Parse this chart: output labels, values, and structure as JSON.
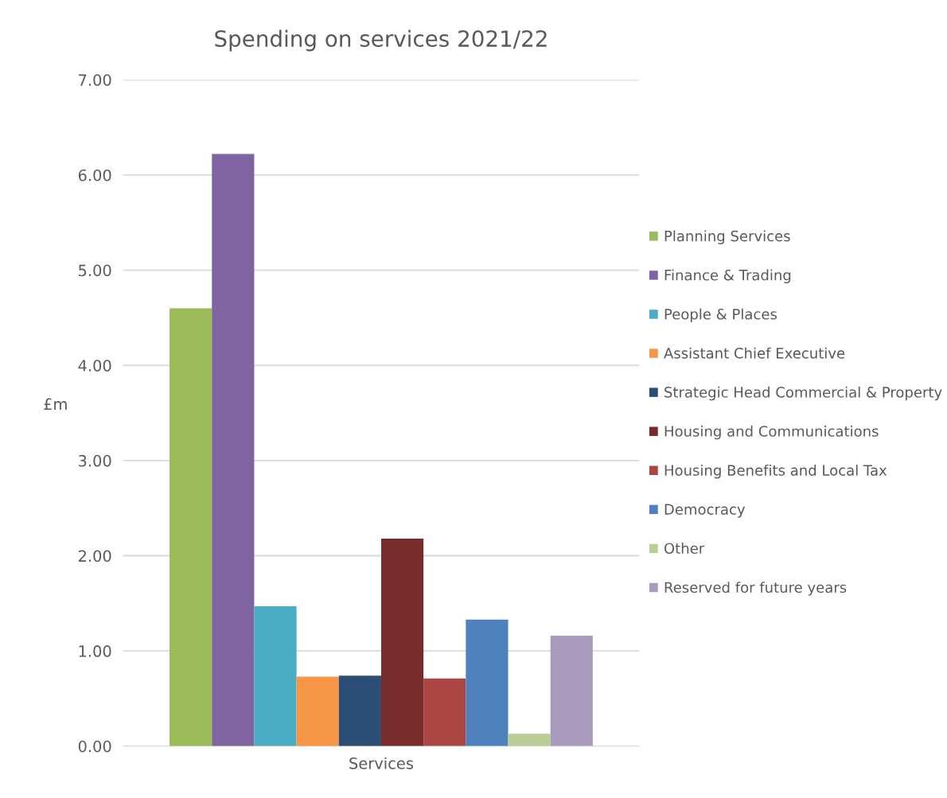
{
  "chart_data": {
    "type": "bar",
    "title": "Spending on services 2021/22",
    "ylabel": "£m",
    "categories": [
      "Services"
    ],
    "series": [
      {
        "name": "Planning Services",
        "color": "#9bbb59",
        "values": [
          4.6
        ]
      },
      {
        "name": "Finance & Trading",
        "color": "#8064a2",
        "values": [
          6.22
        ]
      },
      {
        "name": "People & Places",
        "color": "#4bacc6",
        "values": [
          1.47
        ]
      },
      {
        "name": "Assistant Chief Executive",
        "color": "#f79646",
        "values": [
          0.73
        ]
      },
      {
        "name": "Strategic Head Commercial & Property",
        "color": "#2c4d75",
        "values": [
          0.74
        ]
      },
      {
        "name": "Housing and Communications",
        "color": "#772c2a",
        "values": [
          2.18
        ]
      },
      {
        "name": "Housing Benefits and Local Tax",
        "color": "#aa4644",
        "values": [
          0.71
        ]
      },
      {
        "name": "Democracy",
        "color": "#4f81bd",
        "values": [
          1.33
        ]
      },
      {
        "name": "Other",
        "color": "#b9cd96",
        "values": [
          0.13
        ]
      },
      {
        "name": "Reserved for future years",
        "color": "#a99bbd",
        "values": [
          1.16
        ]
      }
    ],
    "ylim": [
      0,
      7
    ],
    "yticks": [
      {
        "value": 0,
        "label": "0.00"
      },
      {
        "value": 1,
        "label": "1.00"
      },
      {
        "value": 2,
        "label": "2.00"
      },
      {
        "value": 3,
        "label": "3.00"
      },
      {
        "value": 4,
        "label": "4.00"
      },
      {
        "value": 5,
        "label": "5.00"
      },
      {
        "value": 6,
        "label": "6.00"
      },
      {
        "value": 7,
        "label": "7.00"
      }
    ],
    "grid": "y",
    "legend": "right"
  }
}
